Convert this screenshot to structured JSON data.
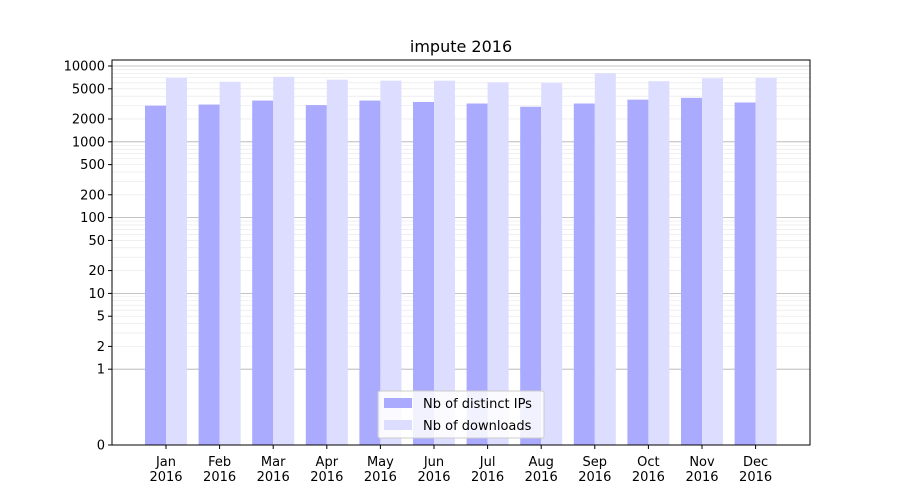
{
  "chart_data": {
    "type": "bar",
    "title": "impute 2016",
    "xlabel": "",
    "ylabel": "",
    "yscale": "symlog",
    "ylim": [
      0,
      12000
    ],
    "grid": true,
    "legend_position": "lower center",
    "categories": [
      "Jan\n2016",
      "Feb\n2016",
      "Mar\n2016",
      "Apr\n2016",
      "May\n2016",
      "Jun\n2016",
      "Jul\n2016",
      "Aug\n2016",
      "Sep\n2016",
      "Oct\n2016",
      "Nov\n2016",
      "Dec\n2016"
    ],
    "yticks": [
      {
        "value": 0,
        "label": "0"
      },
      {
        "value": 1,
        "label": "1"
      },
      {
        "value": 2,
        "label": "2"
      },
      {
        "value": 5,
        "label": "5"
      },
      {
        "value": 10,
        "label": "10"
      },
      {
        "value": 20,
        "label": "20"
      },
      {
        "value": 50,
        "label": "50"
      },
      {
        "value": 100,
        "label": "100"
      },
      {
        "value": 200,
        "label": "200"
      },
      {
        "value": 500,
        "label": "500"
      },
      {
        "value": 1000,
        "label": "1000"
      },
      {
        "value": 2000,
        "label": "2000"
      },
      {
        "value": 5000,
        "label": "5000"
      },
      {
        "value": 10000,
        "label": "10000"
      }
    ],
    "series": [
      {
        "name": "Nb of distinct IPs",
        "color": "#aaaaff",
        "values": [
          3000,
          3100,
          3500,
          3050,
          3500,
          3350,
          3200,
          2900,
          3200,
          3600,
          3800,
          3300
        ]
      },
      {
        "name": "Nb of downloads",
        "color": "#ddddff",
        "values": [
          7000,
          6200,
          7200,
          6600,
          6400,
          6400,
          6100,
          6000,
          8000,
          6300,
          6900,
          7000
        ]
      }
    ]
  }
}
